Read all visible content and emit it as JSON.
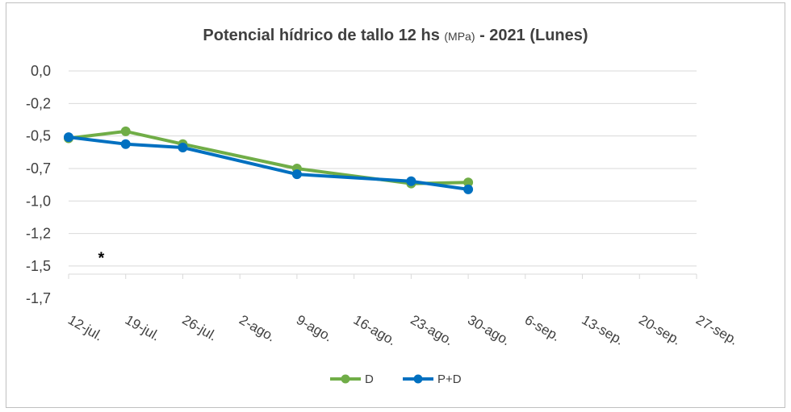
{
  "chart_data": {
    "type": "line",
    "title": {
      "part1": "Potencial hídrico de tallo 12 hs ",
      "part2": "(MPa)",
      "part3": " - 2021 (Lunes)"
    },
    "xlabel": "",
    "ylabel": "",
    "y_tick_labels": [
      "0,0",
      "-0,2",
      "-0,5",
      "-0,7",
      "-1,0",
      "-1,2",
      "-1,5",
      "-1,7"
    ],
    "ylim": [
      -1.75,
      0.0
    ],
    "x_tick_labels": [
      "12-jul.",
      "19-jul.",
      "26-jul.",
      "2-ago.",
      "9-ago.",
      "16-ago.",
      "23-ago.",
      "30-ago.",
      "6-sep.",
      "13-sep.",
      "20-sep.",
      "27-sep."
    ],
    "xlim": [
      "2021-07-12",
      "2021-09-27"
    ],
    "series": [
      {
        "name": "D",
        "color": "#70ad47",
        "points": [
          {
            "x": "2021-07-12",
            "y": -0.58
          },
          {
            "x": "2021-07-19",
            "y": -0.52
          },
          {
            "x": "2021-07-26",
            "y": -0.63
          },
          {
            "x": "2021-08-09",
            "y": -0.84
          },
          {
            "x": "2021-08-23",
            "y": -0.97
          },
          {
            "x": "2021-08-30",
            "y": -0.96
          }
        ]
      },
      {
        "name": "P+D",
        "color": "#0070c0",
        "points": [
          {
            "x": "2021-07-12",
            "y": -0.57
          },
          {
            "x": "2021-07-19",
            "y": -0.63
          },
          {
            "x": "2021-07-26",
            "y": -0.66
          },
          {
            "x": "2021-08-09",
            "y": -0.89
          },
          {
            "x": "2021-08-23",
            "y": -0.95
          },
          {
            "x": "2021-08-30",
            "y": -1.02
          }
        ]
      }
    ],
    "annotations": [
      {
        "text": "*",
        "x": "2021-07-16",
        "y": -1.62
      }
    ],
    "grid": "horizontal",
    "legend": "bottom"
  }
}
